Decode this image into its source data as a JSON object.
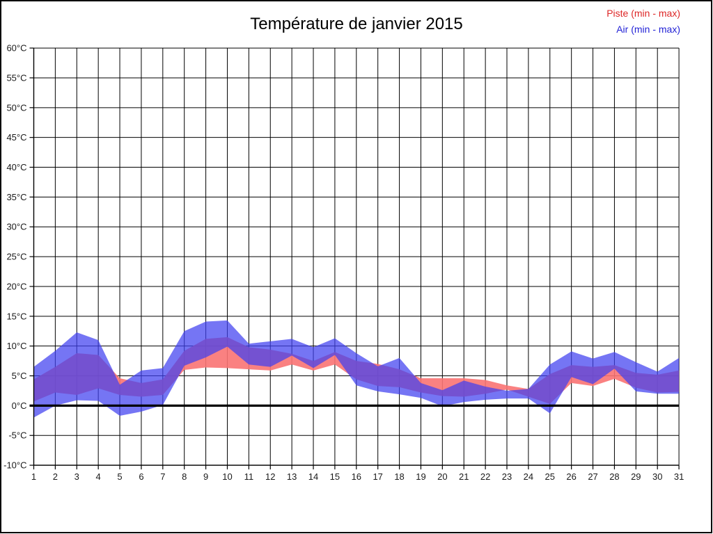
{
  "title": "Température de janvier 2015",
  "legend": [
    {
      "label": "Piste (min - max)",
      "color": "#dd2626"
    },
    {
      "label": "Air (min - max)",
      "color": "#2323d6"
    }
  ],
  "chart_data": {
    "type": "area",
    "subtype": "min-max-bands",
    "xlabel": "",
    "ylabel": "",
    "y_unit": "°C",
    "ylim": [
      -10,
      60
    ],
    "ystep": 5,
    "grid": true,
    "zero_line": true,
    "legend_position": "top-right",
    "y_tick_labels": [
      "60°C",
      "55°C",
      "50°C",
      "45°C",
      "40°C",
      "35°C",
      "30°C",
      "25°C",
      "20°C",
      "15°C",
      "10°C",
      "5°C",
      "0°C",
      "-5°C",
      "-10°C"
    ],
    "y_tick_values": [
      60,
      55,
      50,
      45,
      40,
      35,
      30,
      25,
      20,
      15,
      10,
      5,
      0,
      -5,
      -10
    ],
    "x_tick_labels": [
      "1",
      "2",
      "3",
      "4",
      "5",
      "6",
      "7",
      "8",
      "9",
      "10",
      "11",
      "12",
      "13",
      "14",
      "15",
      "16",
      "17",
      "18",
      "19",
      "20",
      "21",
      "22",
      "23",
      "24",
      "25",
      "26",
      "27",
      "28",
      "29",
      "30",
      "31"
    ],
    "days": [
      1,
      2,
      3,
      4,
      5,
      6,
      7,
      8,
      9,
      10,
      11,
      12,
      13,
      14,
      15,
      16,
      17,
      18,
      19,
      20,
      21,
      22,
      23,
      24,
      25,
      26,
      27,
      28,
      29,
      30,
      31
    ],
    "series": [
      {
        "name": "Piste (min - max)",
        "color": "#fa7373",
        "opacity": 0.9,
        "min": [
          0.7,
          2.2,
          1.8,
          2.9,
          1.8,
          1.5,
          1.8,
          6.0,
          6.4,
          6.3,
          6.1,
          5.9,
          6.9,
          5.9,
          6.9,
          4.4,
          3.3,
          3.1,
          2.2,
          1.6,
          1.5,
          2.0,
          2.7,
          1.5,
          0.3,
          3.8,
          3.3,
          4.5,
          3.0,
          2.2,
          2.3
        ],
        "max": [
          4.4,
          6.5,
          8.8,
          8.5,
          4.6,
          3.8,
          4.4,
          9.2,
          11.2,
          11.5,
          9.8,
          9.4,
          8.7,
          7.5,
          9.0,
          7.5,
          7.0,
          6.1,
          4.6,
          4.6,
          4.6,
          4.3,
          3.4,
          2.8,
          5.3,
          6.8,
          6.5,
          6.8,
          5.5,
          5.2,
          5.9
        ]
      },
      {
        "name": "Air (min - max)",
        "color": "#4040f0",
        "opacity": 0.72,
        "min": [
          -2.0,
          0.0,
          0.9,
          0.8,
          -1.7,
          -1.0,
          0.1,
          6.7,
          8.1,
          9.9,
          6.9,
          6.5,
          8.4,
          6.3,
          8.5,
          3.4,
          2.4,
          1.9,
          1.3,
          -0.1,
          0.6,
          1.0,
          1.2,
          1.2,
          -1.3,
          4.8,
          3.6,
          6.2,
          2.4,
          2.0,
          2.0
        ],
        "max": [
          6.5,
          9.2,
          12.3,
          11.0,
          3.5,
          5.9,
          6.3,
          12.5,
          14.1,
          14.3,
          10.4,
          10.8,
          11.2,
          9.8,
          11.3,
          8.8,
          6.6,
          8.0,
          3.8,
          2.6,
          4.2,
          3.2,
          2.5,
          2.8,
          6.9,
          9.1,
          7.9,
          9.0,
          7.3,
          5.7,
          8.0
        ]
      }
    ]
  }
}
